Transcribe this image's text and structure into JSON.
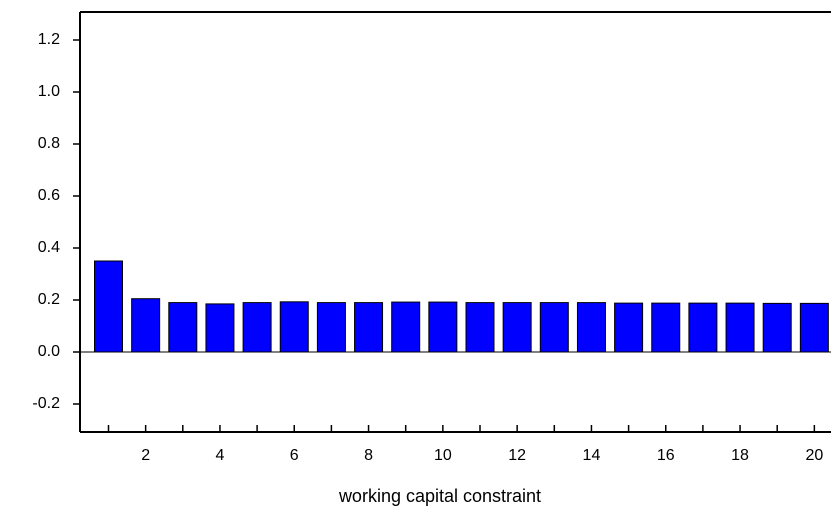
{
  "chart_data": {
    "type": "bar",
    "xlabel": "working capital constraint",
    "categories": [
      null,
      "2",
      null,
      "4",
      null,
      "6",
      null,
      "8",
      null,
      "10",
      null,
      "12",
      null,
      "14",
      null,
      "16",
      null,
      "18",
      null,
      "20"
    ],
    "values": [
      0.35,
      0.205,
      0.19,
      0.185,
      0.19,
      0.193,
      0.19,
      0.19,
      0.192,
      0.192,
      0.19,
      0.19,
      0.19,
      0.19,
      0.188,
      0.188,
      0.188,
      0.188,
      0.187,
      0.187
    ],
    "color": "#0000ff",
    "ylim": [
      -0.3077,
      1.3077
    ],
    "yticks": [
      -0.2,
      {
        "value": 0,
        "label": "0.0"
      },
      0.2,
      0.4,
      0.6,
      0.8,
      {
        "value": 1,
        "label": "1.0"
      },
      1.2
    ],
    "grid": false
  }
}
